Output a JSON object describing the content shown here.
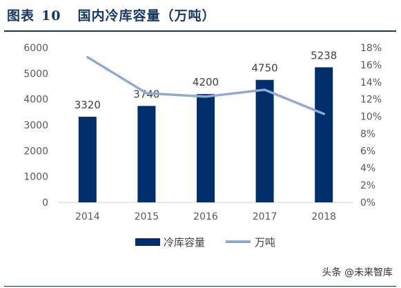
{
  "figure": {
    "label": "图表",
    "number": "10",
    "title": "国内冷库容量（万吨）"
  },
  "watermark": "头条 @未来智库",
  "colors": {
    "bar": "#002f6c",
    "line": "#92a9cf",
    "title": "#17375e",
    "tick": "#595959",
    "label": "#404040"
  },
  "chart_data": {
    "type": "bar+line",
    "categories": [
      "2014",
      "2015",
      "2016",
      "2017",
      "2018"
    ],
    "series": [
      {
        "name": "冷库容量",
        "kind": "bar",
        "axis": "left",
        "values": [
          3320,
          3740,
          4200,
          4750,
          5238
        ],
        "data_labels": [
          "3320",
          "3740",
          "4200",
          "4750",
          "5238"
        ]
      },
      {
        "name": "万吨",
        "kind": "line",
        "axis": "right",
        "values": [
          16.9,
          12.7,
          12.3,
          13.1,
          10.3
        ]
      }
    ],
    "y_left": {
      "range": [
        0,
        6000
      ],
      "ticks": [
        "0",
        "1000",
        "2000",
        "3000",
        "4000",
        "5000",
        "6000"
      ]
    },
    "y_right": {
      "range": [
        0,
        18
      ],
      "unit": "%",
      "ticks": [
        "0%",
        "2%",
        "4%",
        "6%",
        "8%",
        "10%",
        "12%",
        "14%",
        "16%",
        "18%"
      ]
    },
    "grid": false,
    "legend_position": "bottom"
  }
}
